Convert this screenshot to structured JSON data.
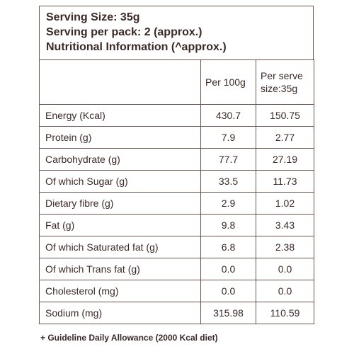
{
  "header": {
    "lines": [
      "Serving Size: 35g",
      "Serving per pack: 2 (approx.)",
      "Nutritional Information (^approx.)"
    ]
  },
  "table": {
    "columns": [
      "Per 100g",
      "Per serve size:35g"
    ],
    "rows": [
      [
        "Energy (Kcal)",
        "430.7",
        "150.75"
      ],
      [
        "Protein (g)",
        "7.9",
        "2.77"
      ],
      [
        "Carbohydrate (g)",
        "77.7",
        "27.19"
      ],
      [
        "Of which Sugar (g)",
        "33.5",
        "11.73"
      ],
      [
        "Dietary fibre (g)",
        "2.9",
        "1.02"
      ],
      [
        "Fat (g)",
        "9.8",
        "3.43"
      ],
      [
        "Of which Saturated fat (g)",
        "6.8",
        "2.38"
      ],
      [
        "Of which Trans fat (g)",
        "0.0",
        "0.0"
      ],
      [
        "Cholesterol (mg)",
        "0.0",
        "0.0"
      ],
      [
        "Sodium (mg)",
        "315.98",
        "110.59"
      ]
    ]
  },
  "footer": "+ Guideline Daily Allowance (2000 Kcal diet)"
}
